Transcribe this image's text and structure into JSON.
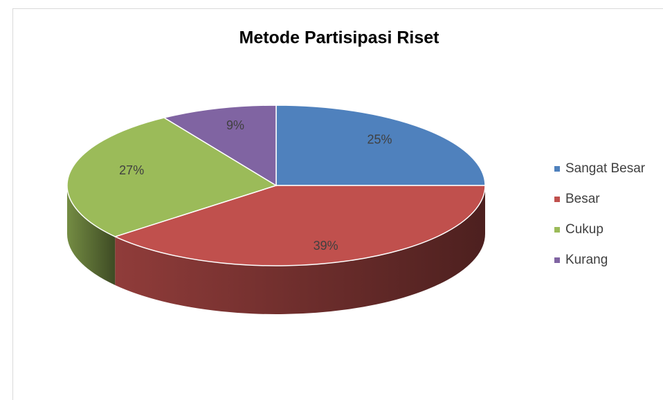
{
  "chart_data": {
    "type": "pie",
    "title": "Metode Partisipasi Riset",
    "categories": [
      "Sangat Besar",
      "Besar",
      "Cukup",
      "Kurang"
    ],
    "values": [
      25,
      39,
      27,
      9
    ],
    "value_labels": [
      "25%",
      "39%",
      "27%",
      "9%"
    ],
    "colors": [
      "#4f81bd",
      "#c0504d",
      "#9bbb59",
      "#8064a2"
    ],
    "legend": "right"
  }
}
